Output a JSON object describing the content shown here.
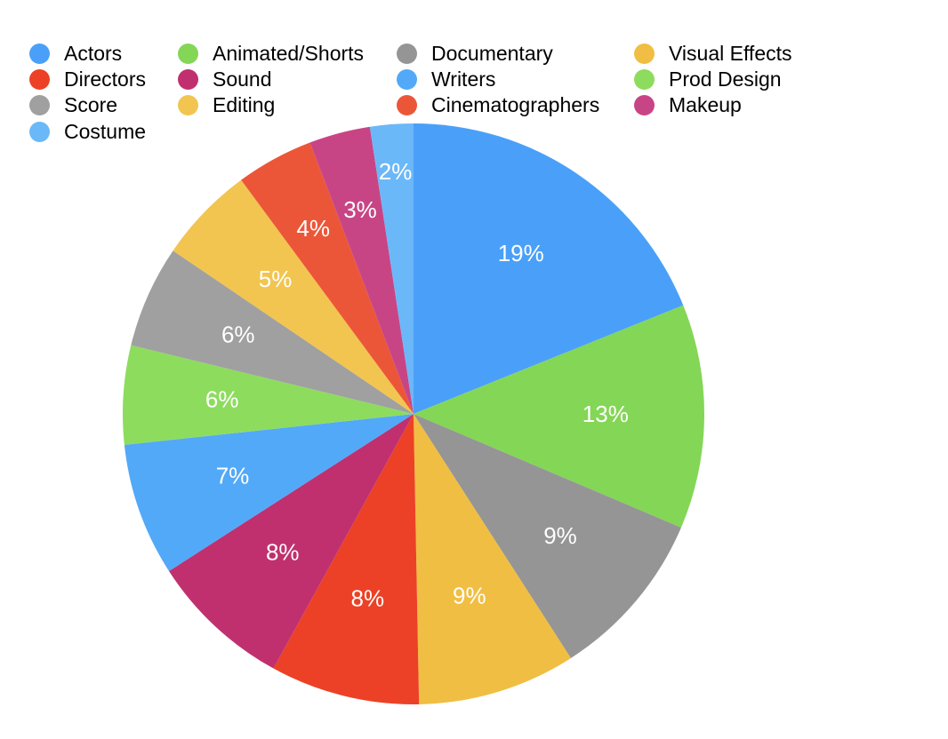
{
  "chart_data": {
    "type": "pie",
    "title": "",
    "legend_position": "top-left",
    "series": [
      {
        "name": "Actors",
        "value": 18.9,
        "label": "19%",
        "color": "#4aa0f8"
      },
      {
        "name": "Animated/Shorts",
        "value": 12.5,
        "label": "13%",
        "color": "#84d656"
      },
      {
        "name": "Documentary",
        "value": 9.5,
        "label": "9%",
        "color": "#959595"
      },
      {
        "name": "Visual Effects",
        "value": 8.8,
        "label": "9%",
        "color": "#f0be42"
      },
      {
        "name": "Directors",
        "value": 8.3,
        "label": "8%",
        "color": "#ec4126"
      },
      {
        "name": "Sound",
        "value": 7.9,
        "label": "8%",
        "color": "#c0306f"
      },
      {
        "name": "Writers",
        "value": 7.4,
        "label": "7%",
        "color": "#52a9f8"
      },
      {
        "name": "Prod Design",
        "value": 5.5,
        "label": "6%",
        "color": "#8ddc5e"
      },
      {
        "name": "Score",
        "value": 5.7,
        "label": "6%",
        "color": "#a0a0a0"
      },
      {
        "name": "Editing",
        "value": 5.4,
        "label": "5%",
        "color": "#f2c550"
      },
      {
        "name": "Cinematographers",
        "value": 4.3,
        "label": "4%",
        "color": "#ec5638"
      },
      {
        "name": "Makeup",
        "value": 3.4,
        "label": "3%",
        "color": "#c84585"
      },
      {
        "name": "Costume",
        "value": 2.4,
        "label": "2%",
        "color": "#6bb8f8"
      }
    ]
  }
}
